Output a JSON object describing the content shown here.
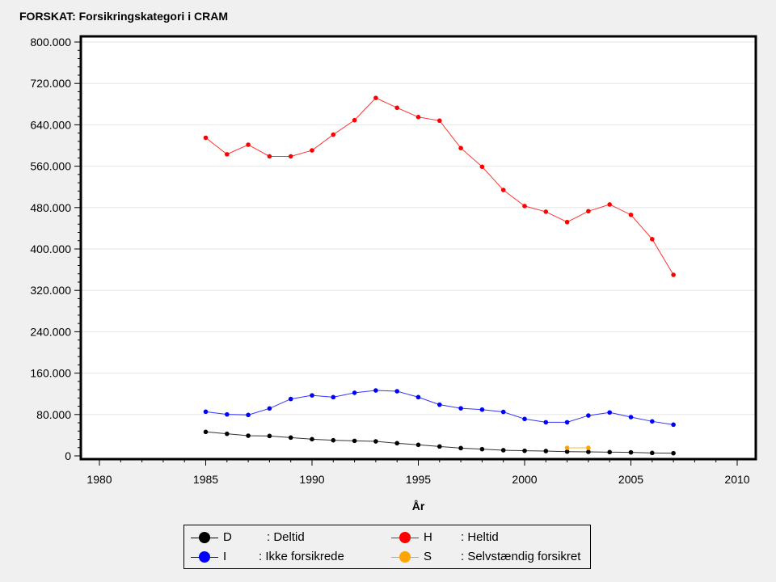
{
  "title": "FORSKAT: Forsikringskategori i CRAM",
  "chart_data": {
    "type": "line",
    "title": "FORSKAT: Forsikringskategori i CRAM",
    "xlabel": "År",
    "ylabel": "",
    "xlim": [
      1980,
      2010
    ],
    "ylim": [
      0,
      800000
    ],
    "x_ticks": [
      "1980",
      "1985",
      "1990",
      "1995",
      "2000",
      "2005",
      "2010"
    ],
    "y_ticks": [
      "0",
      "80.000",
      "160.000",
      "240.000",
      "320.000",
      "400.000",
      "480.000",
      "560.000",
      "640.000",
      "720.000",
      "800.000"
    ],
    "grid": true,
    "legend_position": "bottom",
    "series": [
      {
        "code": "D",
        "name": ": Deltid",
        "color": "#000000",
        "x": [
          1985,
          1986,
          1987,
          1988,
          1989,
          1990,
          1991,
          1992,
          1993,
          1994,
          1995,
          1996,
          1997,
          1998,
          1999,
          2000,
          2001,
          2002,
          2003,
          2004,
          2005,
          2006,
          2007
        ],
        "values": [
          46400,
          42700,
          39000,
          38500,
          35400,
          32300,
          30200,
          29100,
          28100,
          24500,
          21400,
          18200,
          15100,
          13000,
          11000,
          9900,
          9400,
          8300,
          7800,
          7300,
          6800,
          5700,
          5200
        ]
      },
      {
        "code": "H",
        "name": ": Heltid",
        "color": "#ff0000",
        "x": [
          1985,
          1986,
          1987,
          1988,
          1989,
          1990,
          1991,
          1992,
          1993,
          1994,
          1995,
          1996,
          1997,
          1998,
          1999,
          2000,
          2001,
          2002,
          2003,
          2004,
          2005,
          2006,
          2007
        ],
        "values": [
          615000,
          583000,
          601500,
          579000,
          579000,
          590600,
          621000,
          649000,
          692000,
          673000,
          655000,
          648000,
          595000,
          559000,
          514000,
          483000,
          472000,
          452000,
          473000,
          486000,
          466000,
          419000,
          350000
        ]
      },
      {
        "code": "I",
        "name": ": Ikke forsikrede",
        "color": "#0000ff",
        "x": [
          1985,
          1986,
          1987,
          1988,
          1989,
          1990,
          1991,
          1992,
          1993,
          1994,
          1995,
          1996,
          1997,
          1998,
          1999,
          2000,
          2001,
          2002,
          2003,
          2004,
          2005,
          2006,
          2007
        ],
        "values": [
          85400,
          80200,
          79200,
          91700,
          110000,
          117000,
          113500,
          122000,
          126500,
          125000,
          113500,
          99000,
          92000,
          89500,
          85000,
          71400,
          65000,
          65000,
          78000,
          84000,
          75000,
          66700,
          60400
        ]
      },
      {
        "code": "S",
        "name": ": Selvstændig forsikret",
        "color": "#ffa500",
        "x": [
          2002,
          2003
        ],
        "values": [
          15600,
          15600
        ]
      }
    ]
  }
}
